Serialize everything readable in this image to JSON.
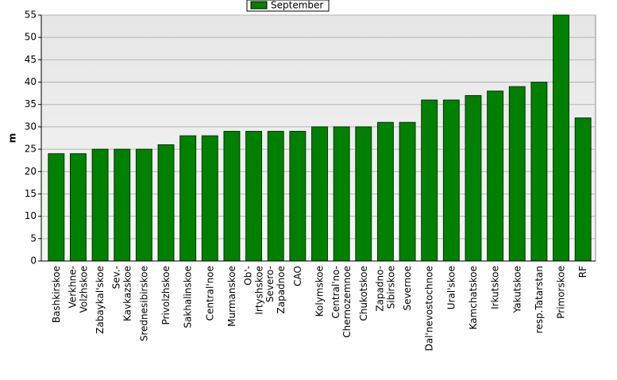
{
  "chart_data": {
    "type": "bar",
    "categories": [
      "Bashkirskoe",
      "Verkhne-\nVolzhskoe",
      "Zabaykal'skoe",
      "Sev.-\nKavkazskoe",
      "Srednesibirskoe",
      "Privolzhskoe",
      "Sakhalinskoe",
      "Central'noe",
      "Murmanskoe",
      "Ob'-\nIrtyshskoe",
      "Severo-\nZapadnoe",
      "CAO",
      "Kolymskoe",
      "Central'no-\nChernozemnoe",
      "Chukotskoe",
      "Zapadno-\nSibirskoe",
      "Severnoe",
      "Dal'nevostochnoe",
      "Ural'skoe",
      "Kamchatskoe",
      "Irkutskoe",
      "Yakutskoe",
      "resp.Tatarstan",
      "Primorskoe",
      "RF"
    ],
    "series": [
      {
        "name": "September",
        "color": "#008000",
        "values": [
          24,
          24,
          25,
          25,
          25,
          26,
          28,
          28,
          29,
          29,
          29,
          29,
          30,
          30,
          30,
          31,
          31,
          36,
          36,
          37,
          38,
          39,
          40,
          55,
          32
        ]
      }
    ],
    "y_label": "m",
    "ylim": [
      0,
      55
    ],
    "yticks": [
      0,
      5,
      10,
      15,
      20,
      25,
      30,
      35,
      40,
      45,
      50,
      55
    ],
    "grid": true
  }
}
